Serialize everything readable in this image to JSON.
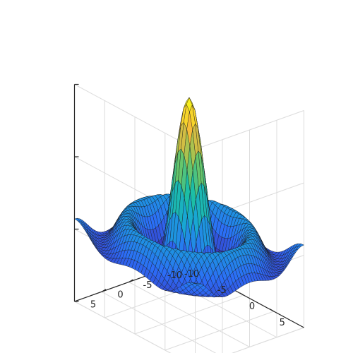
{
  "chart_data": {
    "type": "surface",
    "title": "",
    "xlabel": "",
    "ylabel": "",
    "zlabel": "",
    "function": "z = sin(r)/r, r = sqrt(x^2 + y^2)",
    "x_range": [
      -10,
      10
    ],
    "y_range": [
      -10,
      10
    ],
    "z_range": [
      -0.5,
      1
    ],
    "grid_step": 0.5,
    "grid": true,
    "colormap": "parula",
    "colormap_stops": [
      "#3e26a8",
      "#2c6cf7",
      "#18a4d8",
      "#1cbfa4",
      "#7ec85a",
      "#f6b93b",
      "#f9fb15"
    ],
    "edge_color": "#1a1a1a",
    "axis_color": "#262626",
    "grid_color": "#dcdcdc",
    "y_ticks": [
      {
        "value": 5,
        "label": "5"
      },
      {
        "value": 0,
        "label": "0"
      },
      {
        "value": -5,
        "label": "-5"
      },
      {
        "value": -10,
        "label": "-10"
      }
    ],
    "x_ticks": [
      {
        "value": -10,
        "label": "-10"
      },
      {
        "value": -5,
        "label": "-5"
      },
      {
        "value": 0,
        "label": "0"
      },
      {
        "value": 5,
        "label": "5"
      }
    ]
  }
}
